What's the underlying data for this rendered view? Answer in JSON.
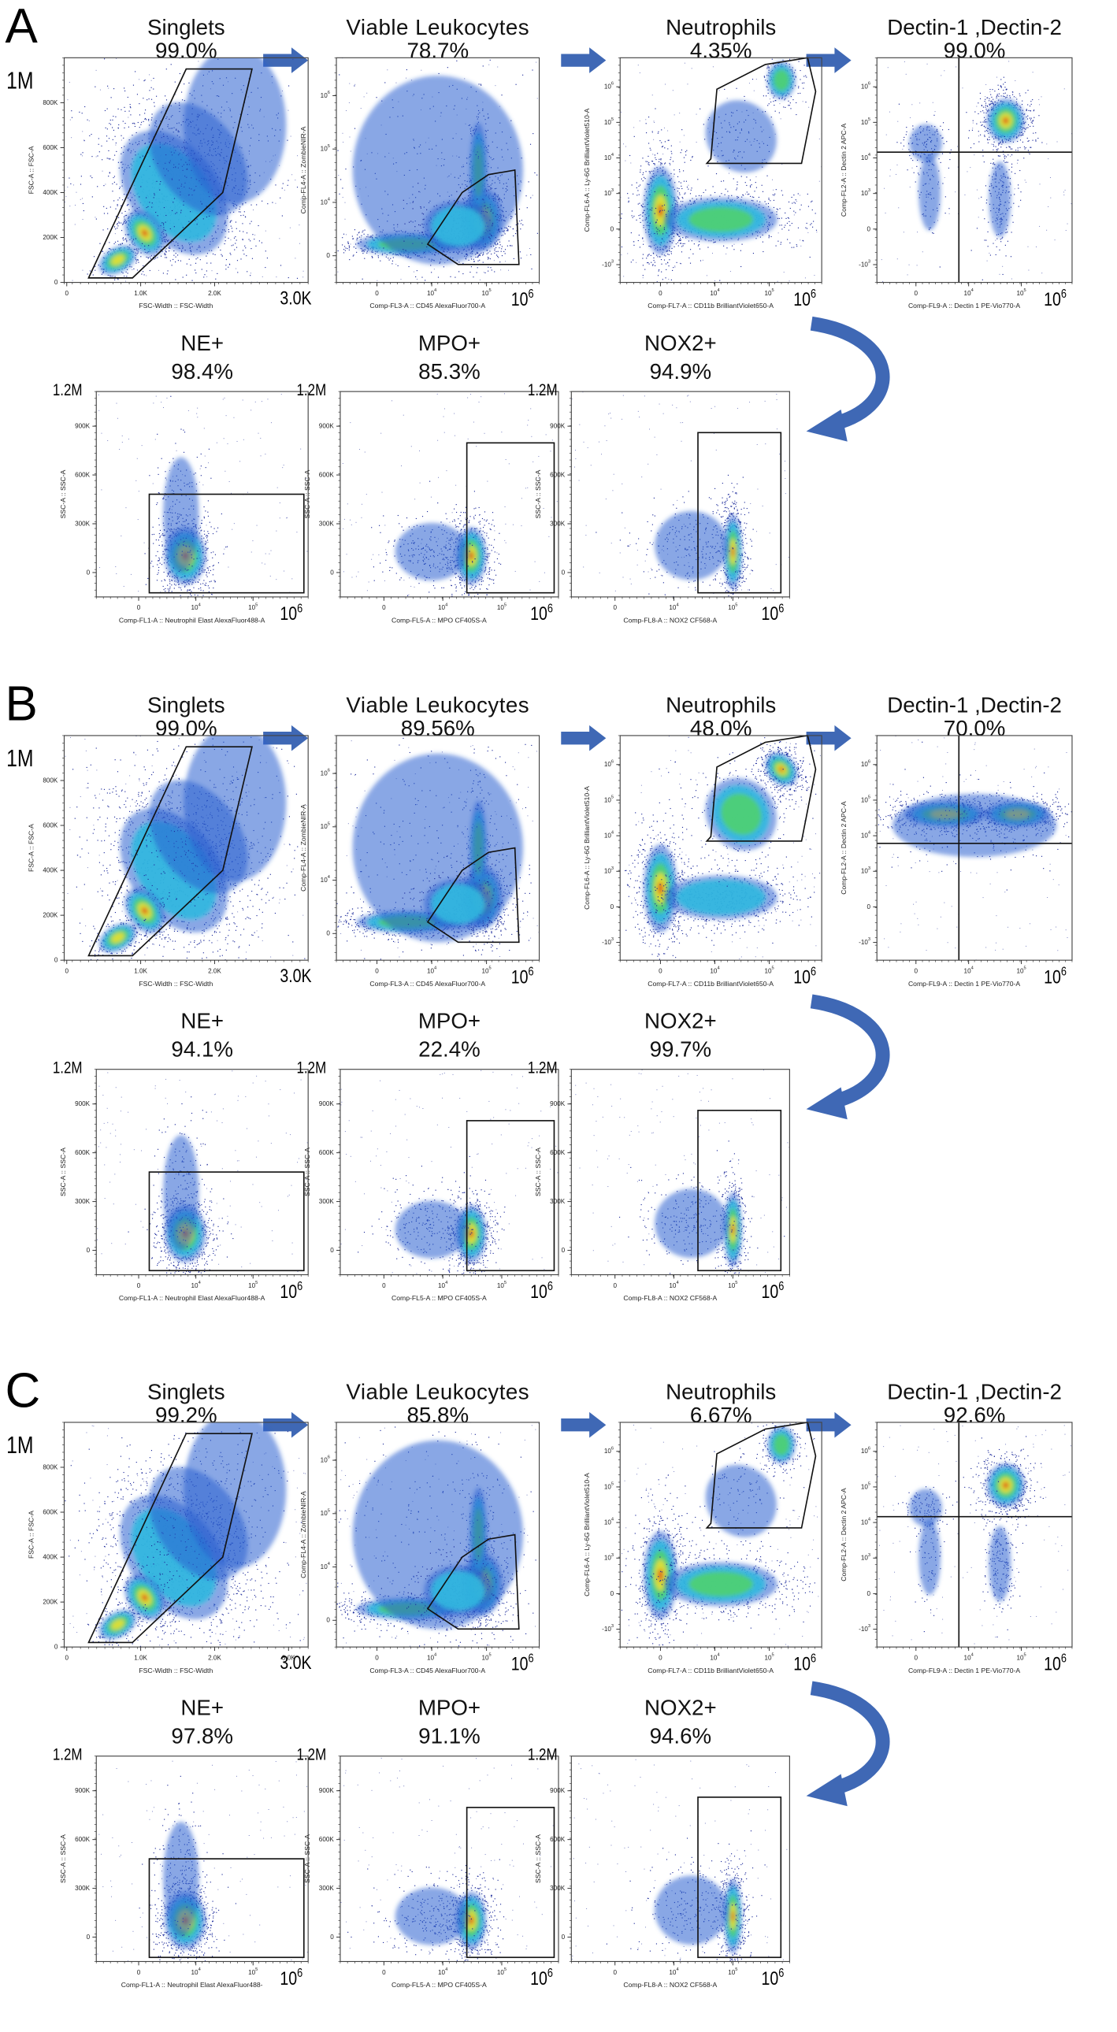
{
  "colors": {
    "arrow": "#3f68b5",
    "dots": "#1c2a9a",
    "gate": "#111111"
  },
  "labels": {
    "singlets": {
      "ylabel": "FSC-A :: FSC-A",
      "xlabel": "FSC-Width :: FSC-Width",
      "yticks": [
        "0",
        "200K",
        "400K",
        "600K",
        "800K"
      ],
      "xticks": [
        "0",
        "1.0K",
        "2.0K"
      ],
      "ymax": "1M",
      "xmax": "3.0K"
    },
    "viable": {
      "ylabel": "Comp-FL4-A :: ZombieNIR-A",
      "xlabel": "Comp-FL3-A :: CD45 AlexaFluor700-A",
      "yticks": [
        "0",
        "10^4",
        "10^5",
        "10^6"
      ],
      "xticks": [
        "0",
        "10^4",
        "10^5"
      ],
      "xmax": "10^6"
    },
    "neut": {
      "ylabel": "Comp-FL6-A :: Ly-6G BrilliantViolet510-A",
      "xlabel": "Comp-FL7-A :: CD11b BrilliantViolet650-A",
      "yticks": [
        "-10^3",
        "0",
        "10^3",
        "10^4",
        "10^5",
        "10^6"
      ],
      "xticks": [
        "0",
        "10^4",
        "10^5"
      ],
      "xmax": "10^6"
    },
    "dectin": {
      "ylabel": "Comp-FL2-A :: Dectin 2 APC-A",
      "xlabel": "Comp-FL9-A :: Dectin 1 PE-Vio770-A",
      "yticks": [
        "-10^3",
        "0",
        "10^3",
        "10^4",
        "10^5",
        "10^6"
      ],
      "xticks": [
        "0",
        "10^4",
        "10^5"
      ],
      "xmax": "10^6"
    },
    "ne": {
      "ylabel": "SSC-A :: SSC-A",
      "xlabel": "Comp-FL1-A :: Neutrophil Elast AlexaFluor488-A",
      "yticks": [
        "0",
        "300K",
        "600K",
        "900K"
      ],
      "xticks": [
        "0",
        "10^4",
        "10^5"
      ],
      "ymax": "1.2M",
      "xmax": "10^6"
    },
    "mpo": {
      "ylabel": "SSC-A :: SSC-A",
      "xlabel": "Comp-FL5-A :: MPO CF405S-A",
      "yticks": [
        "0",
        "300K",
        "600K",
        "900K"
      ],
      "xticks": [
        "0",
        "10^4",
        "10^5"
      ],
      "ymax": "1.2M",
      "xmax": "10^6"
    },
    "nox": {
      "ylabel": "SSC-A :: SSC-A",
      "xlabel": "Comp-FL8-A :: NOX2 CF568-A",
      "yticks": [
        "0",
        "300K",
        "600K",
        "900K"
      ],
      "xticks": [
        "0",
        "10^4",
        "10^5"
      ],
      "ymax": "1.2M",
      "xmax": "10^6"
    }
  },
  "chart_data": [
    {
      "type": "scatter",
      "panel": "A",
      "plots": [
        {
          "key": "singlets",
          "title": "Singlets",
          "percent": "99.0%"
        },
        {
          "key": "viable",
          "title": "Viable Leukocytes",
          "percent": "78.7%"
        },
        {
          "key": "neut",
          "title": "Neutrophils",
          "percent": "4.35%"
        },
        {
          "key": "dectin",
          "title": "Dectin-1 ,Dectin-2",
          "percent": "99.0%"
        },
        {
          "key": "ne",
          "title": "NE+",
          "percent": "98.4%"
        },
        {
          "key": "mpo",
          "title": "MPO+",
          "percent": "85.3%"
        },
        {
          "key": "nox",
          "title": "NOX2+",
          "percent": "94.9%"
        }
      ]
    },
    {
      "type": "scatter",
      "panel": "B",
      "plots": [
        {
          "key": "singlets",
          "title": "Singlets",
          "percent": "99.0%"
        },
        {
          "key": "viable",
          "title": "Viable Leukocytes",
          "percent": "89.56%"
        },
        {
          "key": "neut",
          "title": "Neutrophils",
          "percent": "48.0%"
        },
        {
          "key": "dectin",
          "title": "Dectin-1 ,Dectin-2",
          "percent": "70.0%"
        },
        {
          "key": "ne",
          "title": "NE+",
          "percent": "94.1%"
        },
        {
          "key": "mpo",
          "title": "MPO+",
          "percent": "22.4%"
        },
        {
          "key": "nox",
          "title": "NOX2+",
          "percent": "99.7%"
        }
      ]
    },
    {
      "type": "scatter",
      "panel": "C",
      "plots": [
        {
          "key": "singlets",
          "title": "Singlets",
          "percent": "99.2%"
        },
        {
          "key": "viable",
          "title": "Viable Leukocytes",
          "percent": "85.8%"
        },
        {
          "key": "neut",
          "title": "Neutrophils",
          "percent": "6.67%"
        },
        {
          "key": "dectin",
          "title": "Dectin-1 ,Dectin-2",
          "percent": "92.6%"
        },
        {
          "key": "ne",
          "title": "NE+",
          "percent": "97.8%"
        },
        {
          "key": "mpo",
          "title": "MPO+",
          "percent": "91.1%"
        },
        {
          "key": "nox",
          "title": "NOX2+",
          "percent": "94.6%",
          "xlabel_override": null
        }
      ]
    }
  ],
  "overrides": {
    "C": {
      "singlets_xticks": [
        "0",
        "1.0K",
        "2.0K",
        "3.0K"
      ],
      "ne_xlabel": "Comp-FL1-A :: Neutrophil Elast AlexaFluor488-"
    }
  }
}
